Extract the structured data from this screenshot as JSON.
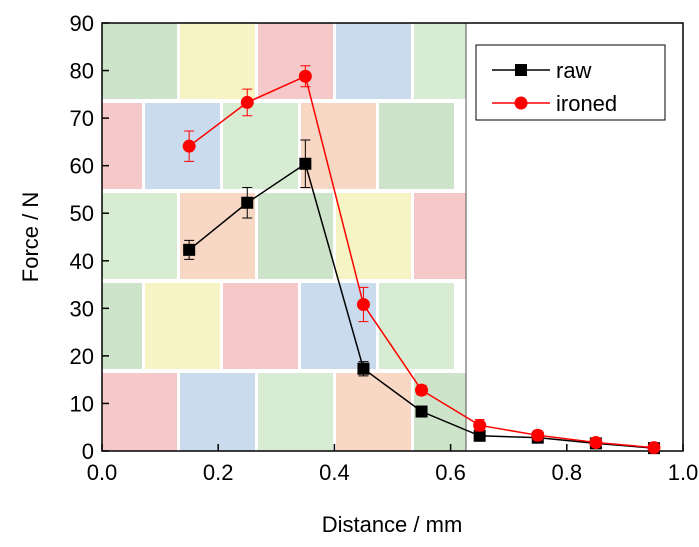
{
  "chart_data": {
    "type": "line",
    "xlabel": "Distance / mm",
    "ylabel": "Force / N",
    "x": [
      0.15,
      0.25,
      0.35,
      0.45,
      0.55,
      0.65,
      0.75,
      0.85,
      0.95
    ],
    "series": [
      {
        "name": "raw",
        "color": "#000000",
        "marker": "square",
        "values": [
          42.3,
          52.2,
          60.4,
          17.3,
          8.3,
          3.2,
          2.8,
          1.6,
          0.6
        ],
        "errors": [
          2.0,
          3.2,
          5.0,
          1.5,
          0.8,
          0.5,
          0.5,
          0.4,
          0.3
        ]
      },
      {
        "name": "ironed",
        "color": "#ff0000",
        "marker": "circle",
        "values": [
          64.1,
          73.3,
          78.8,
          30.8,
          12.8,
          5.4,
          3.3,
          1.8,
          0.7
        ],
        "errors": [
          3.2,
          2.8,
          2.2,
          3.6,
          1.0,
          1.2,
          1.0,
          0.5,
          0.4
        ]
      }
    ],
    "xlim": [
      0,
      1
    ],
    "ylim": [
      0,
      90
    ],
    "xticks": [
      {
        "value": 0,
        "label": "0.0"
      },
      {
        "value": 0.2,
        "label": "0.2"
      },
      {
        "value": 0.4,
        "label": "0.4"
      },
      {
        "value": 0.6,
        "label": "0.6"
      },
      {
        "value": 0.8,
        "label": "0.8"
      },
      {
        "value": 1,
        "label": "1.0"
      }
    ],
    "yticks": [
      0,
      10,
      20,
      30,
      40,
      50,
      60,
      70,
      80,
      90
    ],
    "legend": "upper right"
  }
}
